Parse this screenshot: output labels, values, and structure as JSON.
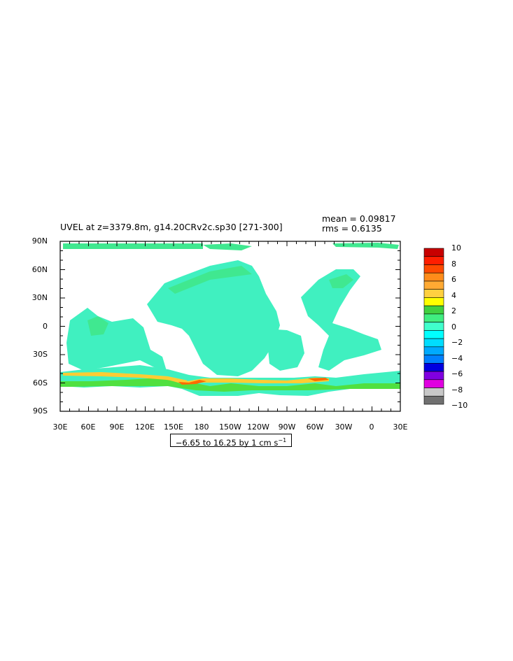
{
  "title": "UVEL at z=3379.8m, g14.20CRv2c.sp30  [271-300]",
  "stats": {
    "mean": "mean = 0.09817",
    "rms": "rms = 0.6135"
  },
  "contour_info": {
    "text": "−6.65 to 16.25 by 1 cm s",
    "superscript": "−1"
  },
  "map": {
    "lat_labels": [
      "90N",
      "60N",
      "30N",
      "0",
      "30S",
      "60S",
      "90S"
    ],
    "lon_labels": [
      "30E",
      "60E",
      "90E",
      "120E",
      "150E",
      "180",
      "150W",
      "120W",
      "90W",
      "60W",
      "30W",
      "0",
      "30E"
    ]
  },
  "colorbar": {
    "labels": [
      "10",
      "8",
      "6",
      "4",
      "2",
      "0",
      "−2",
      "−4",
      "−6",
      "−8",
      "−10"
    ],
    "colors": [
      "#c80000",
      "#ff1e00",
      "#ff4a00",
      "#ff8c1a",
      "#ffaa33",
      "#ffd040",
      "#ffff00",
      "#40d040",
      "#40ee80",
      "#40ffcc",
      "#00ffff",
      "#00ddff",
      "#00aaff",
      "#0080ff",
      "#0000e0",
      "#8000e0",
      "#e000e0",
      "#c8c8c8",
      "#707070"
    ]
  },
  "palette": {
    "ocean_main": "#40f0c0",
    "ocean_alt": "#40e890",
    "green": "#50e040",
    "acc_warm": "#ffcc33",
    "acc_hot": "#ff6a00",
    "cyan": "#00ffff"
  }
}
